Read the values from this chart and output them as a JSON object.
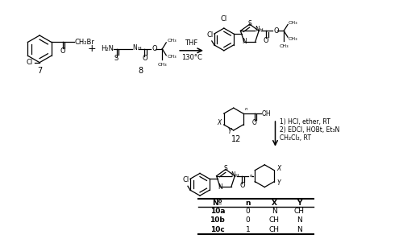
{
  "background_color": "#ffffff",
  "text_color": "#000000",
  "table_headers": [
    "Nº",
    "n",
    "X",
    "Y"
  ],
  "table_rows": [
    [
      "10a",
      "0",
      "N",
      "CH"
    ],
    [
      "10b",
      "0",
      "CH",
      "N"
    ],
    [
      "10c",
      "1",
      "CH",
      "N"
    ]
  ],
  "figsize": [
    5.0,
    3.02
  ],
  "dpi": 100,
  "arrow1_label_top": "130°C",
  "arrow1_label_bot": "THF",
  "cond1": "1) HCl, ether, RT",
  "cond2": "2) EDCl, HOBt, Et₃N",
  "cond3": "CH₂Cl₂, RT",
  "lbl7": "7",
  "lbl8": "8",
  "lbl12": "12"
}
